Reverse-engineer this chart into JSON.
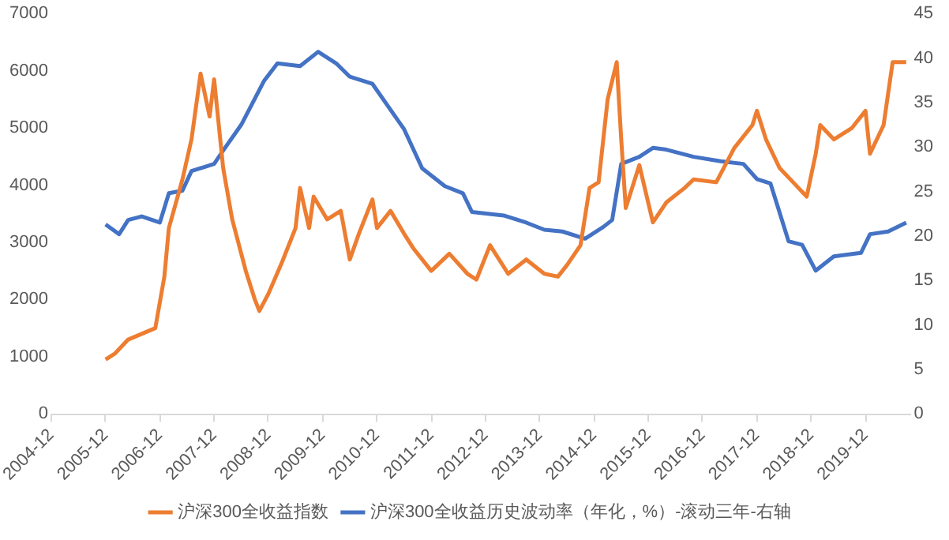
{
  "chart_data": {
    "type": "line",
    "xlim": [
      "2004-12",
      "2020-10"
    ],
    "xticks": [
      "2004-12",
      "2005-12",
      "2006-12",
      "2007-12",
      "2008-12",
      "2009-12",
      "2010-12",
      "2011-12",
      "2012-12",
      "2013-12",
      "2014-12",
      "2015-12",
      "2016-12",
      "2017-12",
      "2018-12",
      "2019-12"
    ],
    "ylim": [
      0,
      7000
    ],
    "yticks": [
      0,
      1000,
      2000,
      3000,
      4000,
      5000,
      6000,
      7000
    ],
    "y2lim": [
      0,
      45
    ],
    "y2ticks": [
      0,
      5,
      10,
      15,
      20,
      25,
      30,
      35,
      40,
      45
    ],
    "grid": false,
    "legend": "bottom",
    "marker": "none",
    "line_style": "solid",
    "series": [
      {
        "name": "沪深300全收益指数",
        "color": "#ed7d31",
        "x": [
          "2005-12",
          "2006-02",
          "2006-05",
          "2006-08",
          "2006-11",
          "2007-01",
          "2007-02",
          "2007-05",
          "2007-07",
          "2007-09",
          "2007-11",
          "2007-12",
          "2008-02",
          "2008-04",
          "2008-07",
          "2008-09",
          "2008-10",
          "2008-12",
          "2009-03",
          "2009-06",
          "2009-07",
          "2009-09",
          "2009-10",
          "2010-01",
          "2010-04",
          "2010-06",
          "2010-08",
          "2010-11",
          "2010-12",
          "2011-03",
          "2011-06",
          "2011-08",
          "2011-12",
          "2012-04",
          "2012-08",
          "2012-10",
          "2013-01",
          "2013-05",
          "2013-09",
          "2014-01",
          "2014-04",
          "2014-06",
          "2014-09",
          "2014-11",
          "2015-01",
          "2015-03",
          "2015-05",
          "2015-06",
          "2015-07",
          "2015-10",
          "2016-01",
          "2016-04",
          "2016-08",
          "2016-10",
          "2017-03",
          "2017-07",
          "2017-11",
          "2017-12",
          "2018-02",
          "2018-05",
          "2018-08",
          "2018-11",
          "2019-01",
          "2019-02",
          "2019-05",
          "2019-09",
          "2019-12",
          "2020-01",
          "2020-04",
          "2020-06",
          "2020-09"
        ],
        "values": [
          950,
          1050,
          1300,
          1400,
          1500,
          2400,
          3250,
          4100,
          4800,
          5950,
          5200,
          5850,
          4300,
          3400,
          2500,
          2000,
          1800,
          2100,
          2650,
          3250,
          3950,
          3250,
          3800,
          3400,
          3550,
          2700,
          3150,
          3750,
          3250,
          3550,
          3150,
          2900,
          2500,
          2800,
          2450,
          2350,
          2950,
          2450,
          2700,
          2450,
          2400,
          2600,
          2950,
          3950,
          4050,
          5500,
          6150,
          4800,
          3600,
          4350,
          3350,
          3700,
          3950,
          4100,
          4050,
          4650,
          5050,
          5300,
          4800,
          4300,
          4050,
          3800,
          4550,
          5050,
          4800,
          5000,
          5300,
          4550,
          5050,
          6150,
          6150
        ]
      },
      {
        "name": "沪深300全收益历史波动率（年化，%）-滚动三年-右轴",
        "color": "#4472c4",
        "axis": "y2",
        "x": [
          "2005-12",
          "2006-03",
          "2006-05",
          "2006-08",
          "2006-12",
          "2007-02",
          "2007-05",
          "2007-07",
          "2007-12",
          "2008-02",
          "2008-06",
          "2008-11",
          "2009-02",
          "2009-07",
          "2009-11",
          "2010-03",
          "2010-06",
          "2010-11",
          "2011-06",
          "2011-10",
          "2012-03",
          "2012-07",
          "2012-09",
          "2013-04",
          "2013-09",
          "2014-01",
          "2014-05",
          "2014-10",
          "2015-02",
          "2015-04",
          "2015-06",
          "2015-10",
          "2016-01",
          "2016-04",
          "2016-10",
          "2017-04",
          "2017-09",
          "2017-12",
          "2018-03",
          "2018-07",
          "2018-10",
          "2019-01",
          "2019-05",
          "2019-11",
          "2020-01",
          "2020-05",
          "2020-09"
        ],
        "values": [
          21.3,
          20.2,
          21.8,
          22.2,
          21.5,
          24.8,
          25.1,
          27.3,
          28.1,
          29.6,
          32.5,
          37.4,
          39.4,
          39.1,
          40.7,
          39.4,
          37.9,
          37.1,
          32.0,
          27.6,
          25.6,
          24.8,
          22.7,
          22.3,
          21.5,
          20.7,
          20.5,
          19.7,
          21.0,
          21.8,
          28.1,
          28.9,
          29.9,
          29.7,
          28.9,
          28.4,
          28.1,
          26.4,
          25.9,
          19.4,
          19.0,
          16.1,
          17.7,
          18.1,
          20.2,
          20.5,
          21.5
        ]
      }
    ]
  }
}
